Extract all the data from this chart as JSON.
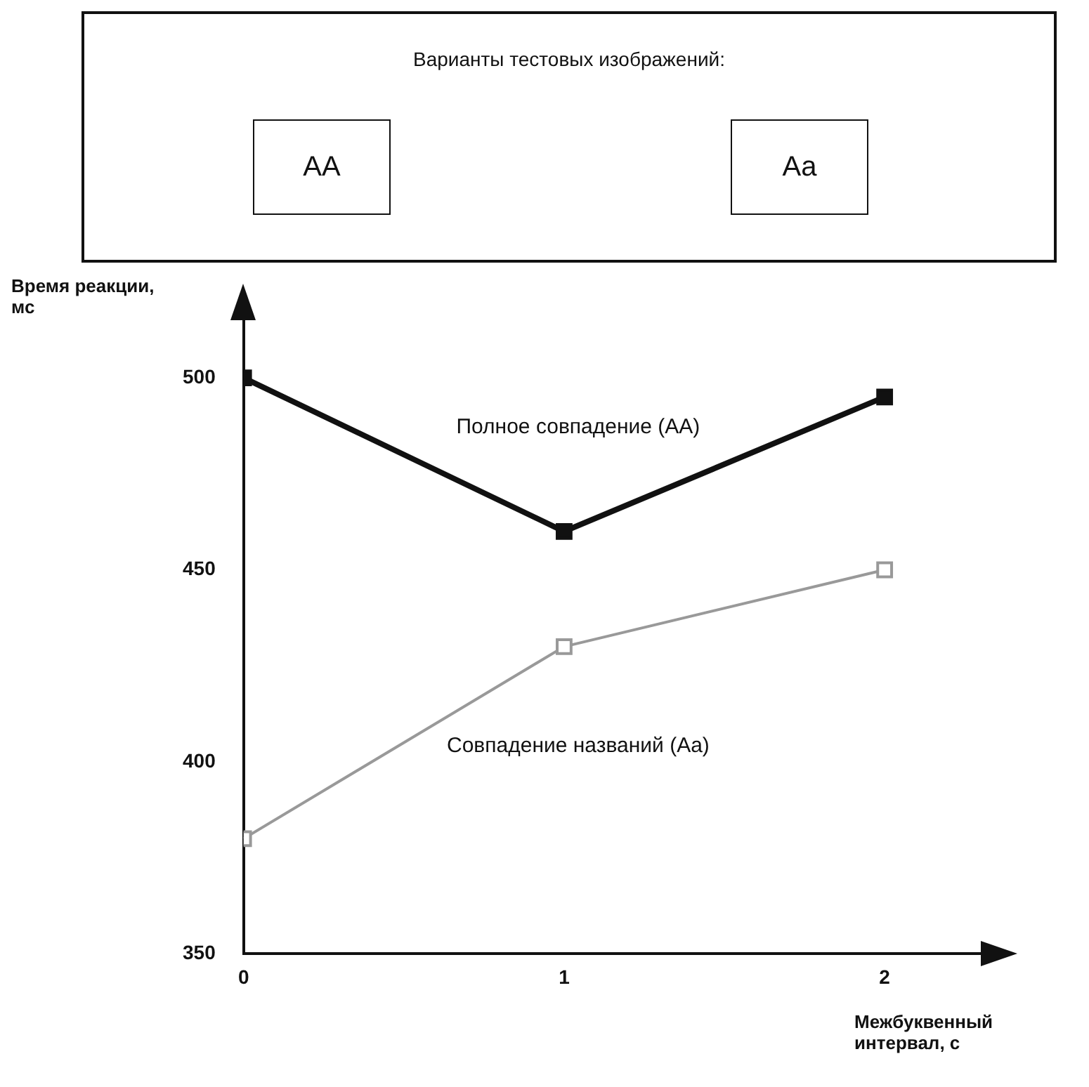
{
  "chart_data": {
    "type": "line",
    "annotations": [
      "Варианты тестовых изображений:",
      "AA",
      "Aa"
    ],
    "x": [
      0,
      1,
      2
    ],
    "series": [
      {
        "name": "Полное совпадение (AA)",
        "color": "#111111",
        "values": [
          500,
          460,
          495
        ]
      },
      {
        "name": "Совпадение названий (Aa)",
        "color": "#999999",
        "values": [
          380,
          430,
          450
        ]
      }
    ],
    "xlabel": "Межбуквенный интервал, с",
    "ylabel": "Время реакции, мс",
    "xlim": [
      0,
      2.3
    ],
    "ylim": [
      350,
      515
    ],
    "xticks": [
      0,
      1,
      2
    ],
    "yticks": [
      350,
      400,
      450,
      500
    ],
    "grid": false,
    "legend": false,
    "marker": "square",
    "line_style": "solid"
  }
}
